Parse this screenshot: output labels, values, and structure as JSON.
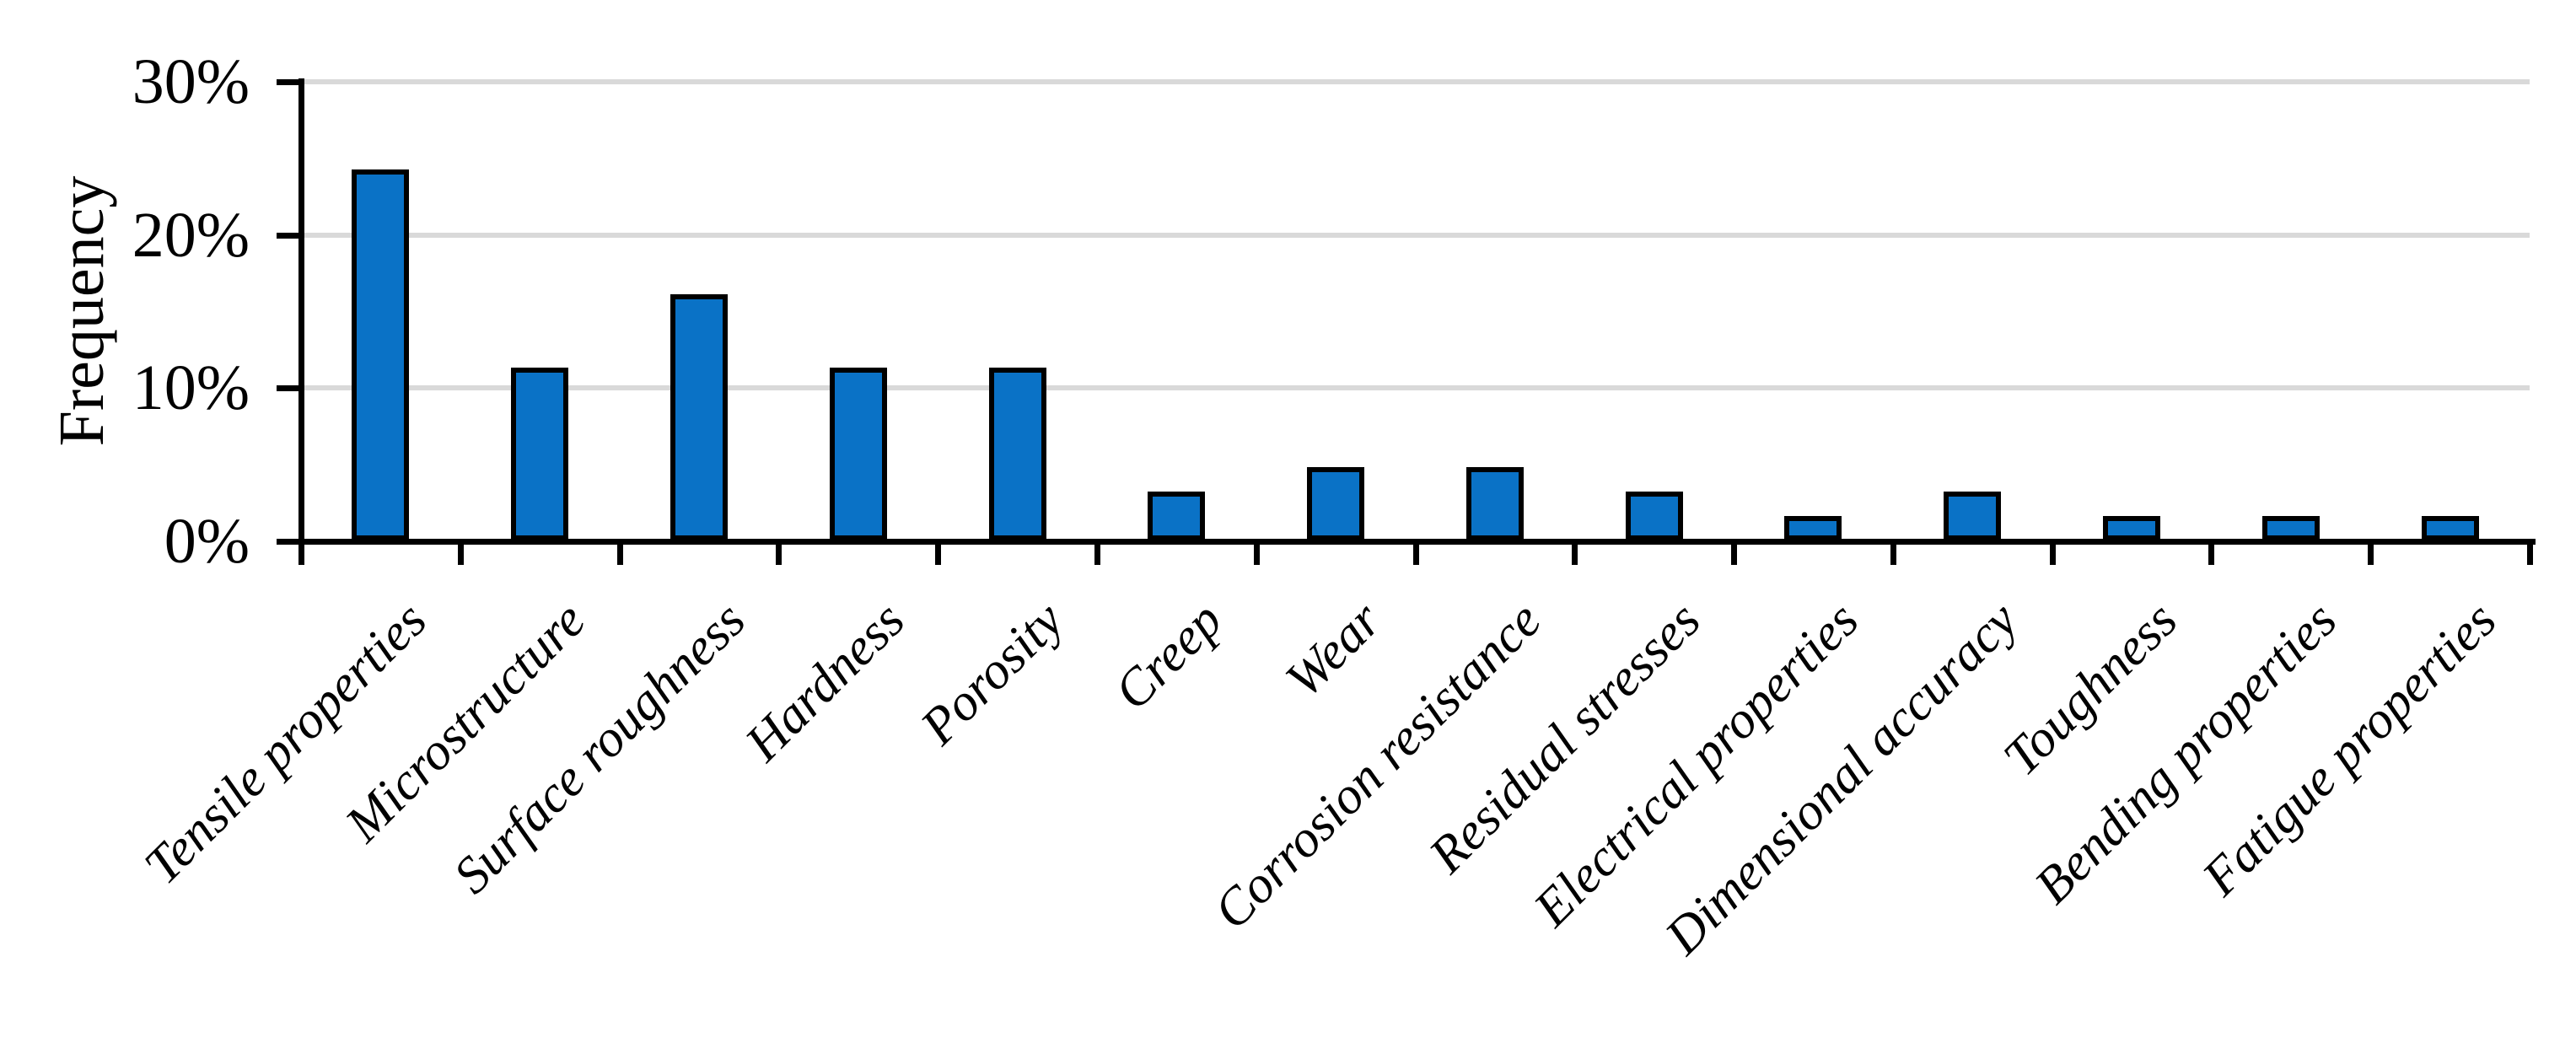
{
  "chart_data": {
    "type": "bar",
    "title": "",
    "ylabel": "Frequency",
    "xlabel": "",
    "unit": "%",
    "categories": [
      "Tensile properties",
      "Microstructure",
      "Surface roughness",
      "Hardness",
      "Porosity",
      "Creep",
      "Wear",
      "Corrosion resistance",
      "Residual stresses",
      "Electrical properties",
      "Dimensional accuracy",
      "Toughness",
      "Bending properties",
      "Fatigue properties"
    ],
    "values": [
      24.2,
      11.3,
      16.1,
      11.3,
      11.3,
      3.2,
      4.8,
      4.8,
      3.2,
      1.6,
      3.2,
      1.6,
      1.6,
      1.6
    ],
    "ylim": [
      0,
      30
    ],
    "yticks": [
      {
        "value": 0,
        "label": "0%"
      },
      {
        "value": 10,
        "label": "10%"
      },
      {
        "value": 20,
        "label": "20%"
      },
      {
        "value": 30,
        "label": "30%"
      }
    ],
    "grid": "horizontal",
    "legend": "none",
    "x_label_rotation_deg": 45,
    "colors": {
      "bar_fill": "#0a72c6",
      "bar_border": "#000000",
      "gridline": "#d9d9d9",
      "axis": "#000000",
      "text": "#000000"
    }
  }
}
